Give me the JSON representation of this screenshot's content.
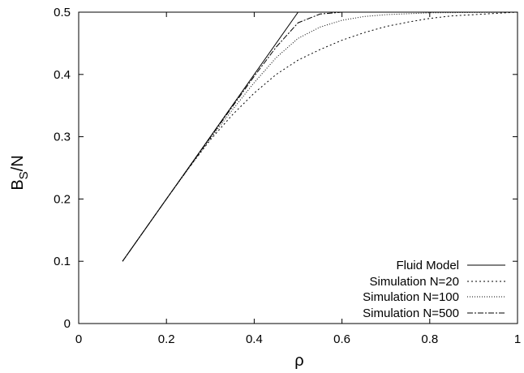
{
  "chart_data": {
    "type": "line",
    "xlabel": "ρ",
    "ylabel_main": "B",
    "ylabel_sub": "S",
    "ylabel_tail": "/N",
    "xlim": [
      0,
      1
    ],
    "ylim": [
      0,
      0.5
    ],
    "xticks": [
      0,
      0.2,
      0.4,
      0.6,
      0.8,
      1
    ],
    "xtick_labels": [
      "0",
      "0.2",
      "0.4",
      "0.6",
      "0.8",
      "1"
    ],
    "yticks": [
      0,
      0.1,
      0.2,
      0.3,
      0.4,
      0.5
    ],
    "ytick_labels": [
      "0",
      "0.1",
      "0.2",
      "0.3",
      "0.4",
      "0.5"
    ],
    "grid": false,
    "legend_position": "bottom-right",
    "series": [
      {
        "name": "Fluid Model",
        "dash": "none",
        "points": [
          [
            0.1,
            0.1
          ],
          [
            0.5,
            0.5
          ],
          [
            1.0,
            0.5
          ]
        ]
      },
      {
        "name": "Simulation N=20",
        "dash": "2,3",
        "points": [
          [
            0.1,
            0.1
          ],
          [
            0.2,
            0.2
          ],
          [
            0.25,
            0.249
          ],
          [
            0.3,
            0.295
          ],
          [
            0.35,
            0.335
          ],
          [
            0.4,
            0.37
          ],
          [
            0.45,
            0.4
          ],
          [
            0.5,
            0.423
          ],
          [
            0.55,
            0.44
          ],
          [
            0.6,
            0.455
          ],
          [
            0.65,
            0.467
          ],
          [
            0.7,
            0.477
          ],
          [
            0.75,
            0.484
          ],
          [
            0.8,
            0.49
          ],
          [
            0.85,
            0.494
          ],
          [
            0.9,
            0.496
          ],
          [
            0.95,
            0.498
          ],
          [
            1.0,
            0.5
          ]
        ]
      },
      {
        "name": "Simulation N=100",
        "dash": "1,2",
        "points": [
          [
            0.1,
            0.1
          ],
          [
            0.2,
            0.2
          ],
          [
            0.3,
            0.297
          ],
          [
            0.35,
            0.343
          ],
          [
            0.4,
            0.387
          ],
          [
            0.45,
            0.427
          ],
          [
            0.5,
            0.458
          ],
          [
            0.55,
            0.476
          ],
          [
            0.6,
            0.487
          ],
          [
            0.65,
            0.493
          ],
          [
            0.7,
            0.496
          ],
          [
            0.8,
            0.499
          ],
          [
            1.0,
            0.5
          ]
        ]
      },
      {
        "name": "Simulation N=500",
        "dash": "7,2,2,2",
        "points": [
          [
            0.1,
            0.1
          ],
          [
            0.2,
            0.2
          ],
          [
            0.3,
            0.299
          ],
          [
            0.4,
            0.397
          ],
          [
            0.45,
            0.444
          ],
          [
            0.5,
            0.483
          ],
          [
            0.55,
            0.497
          ],
          [
            0.6,
            0.5
          ],
          [
            1.0,
            0.5
          ]
        ]
      }
    ]
  }
}
